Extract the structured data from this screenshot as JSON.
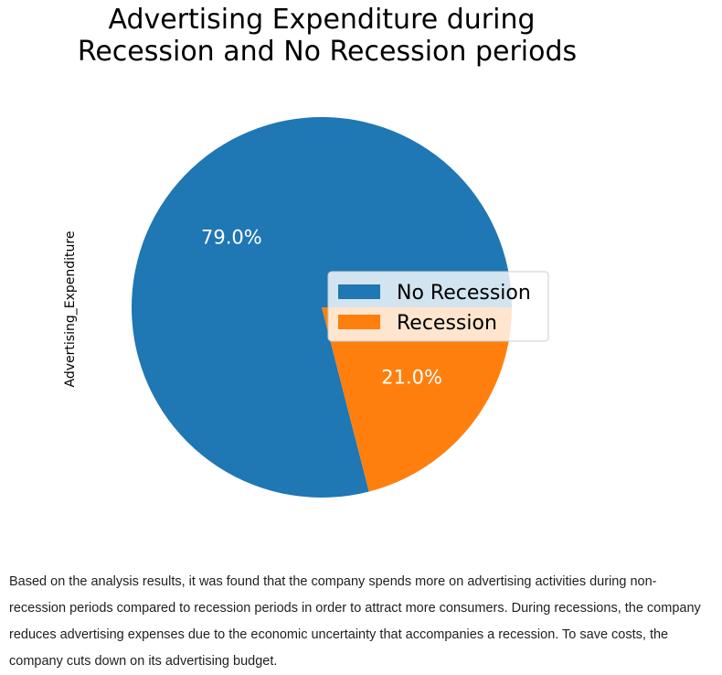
{
  "chart_data": {
    "type": "pie",
    "title": "Advertising Expenditure during Recession and No Recession periods",
    "title_lines": [
      "Advertising Expenditure during",
      "Recession and No Recession periods"
    ],
    "ylabel": "Advertising_Expenditure",
    "labels": [
      "No Recession",
      "Recession"
    ],
    "values": [
      79.0,
      21.0
    ],
    "autopct_labels": [
      "79.0%",
      "21.0%"
    ],
    "colors": [
      "#1f77b4",
      "#ff7f0e"
    ],
    "legend": {
      "entries": [
        "No Recession",
        "Recession"
      ],
      "placement": "center-right"
    }
  },
  "description": "Based on the analysis results, it was found that the company spends more on advertising activities during non-recession periods compared to recession periods in order to attract more consumers. During recessions, the company reduces advertising expenses due to the economic uncertainty that accompanies a recession. To save costs, the company cuts down on its advertising budget."
}
